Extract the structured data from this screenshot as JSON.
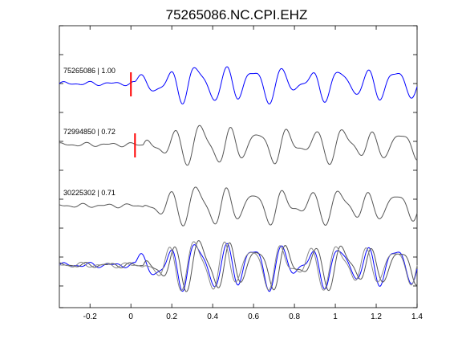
{
  "chart_data": {
    "type": "line",
    "title": "75265086.NC.CPI.EHZ",
    "xlabel": "",
    "ylabel": "",
    "xlim": [
      -0.35,
      1.4
    ],
    "xticks": [
      -0.2,
      0,
      0.2,
      0.4,
      0.6,
      0.8,
      1,
      1.2,
      1.4
    ],
    "xtick_labels": [
      "-0.2",
      "0",
      "0.2",
      "0.4",
      "0.6",
      "0.8",
      "1",
      "1.2",
      "1.4"
    ],
    "grid": false,
    "colors": {
      "primary": "#0000ff",
      "secondary": "#555555",
      "pick": "#ff0000",
      "axes": "#000000"
    },
    "traces": [
      {
        "label": "75265086 | 1.00",
        "color": "#0000ff",
        "pick_time": 0.0
      },
      {
        "label": "72994850 | 0.72",
        "color": "#555555",
        "pick_time": 0.02
      },
      {
        "label": "30225302 | 0.71",
        "color": "#555555",
        "pick_time": null
      }
    ],
    "overlay": {
      "series_colors": [
        "#0000ff",
        "#555555",
        "#888888"
      ]
    }
  }
}
